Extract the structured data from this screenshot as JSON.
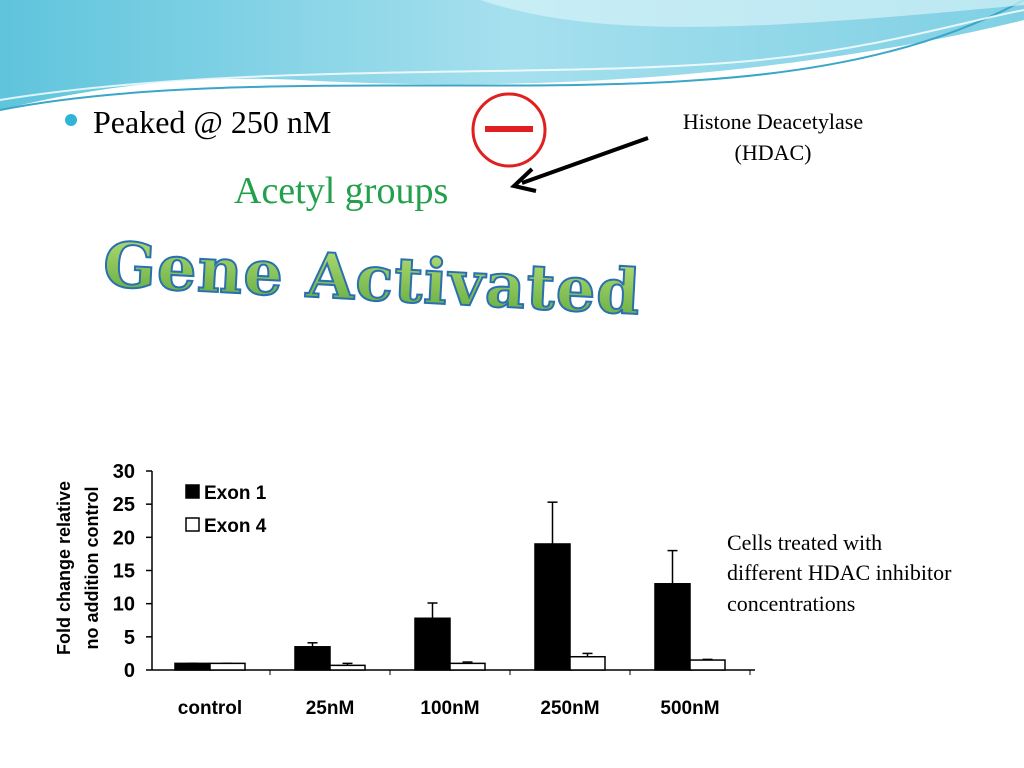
{
  "slide": {
    "bullet": "Peaked @ 250 nM",
    "acetyl": "Acetyl groups",
    "hdac_lines": [
      "Histone Deacetylase",
      "(HDAC)"
    ],
    "headline": "Gene Activated",
    "caption_lines": [
      "Cells treated with",
      "different HDAC inhibitor",
      "concentrations"
    ]
  },
  "chart_data": {
    "type": "bar",
    "y_label": [
      "Fold change relative",
      "no addition control"
    ],
    "categories": [
      "control",
      "25nM",
      "100nM",
      "250nM",
      "500nM"
    ],
    "series": [
      {
        "name": "Exon 1",
        "color": "#000000",
        "values": [
          1,
          3.5,
          7.8,
          19,
          13
        ],
        "errors": [
          0,
          0.6,
          2.3,
          6.3,
          5
        ]
      },
      {
        "name": "Exon 4",
        "color": "#ffffff",
        "values": [
          1,
          0.7,
          1,
          2,
          1.5
        ],
        "errors": [
          0,
          0.3,
          0.2,
          0.5,
          0.1
        ]
      }
    ],
    "ylim": [
      0,
      30
    ],
    "yticks": [
      0,
      5,
      10,
      15,
      20,
      25,
      30
    ]
  }
}
